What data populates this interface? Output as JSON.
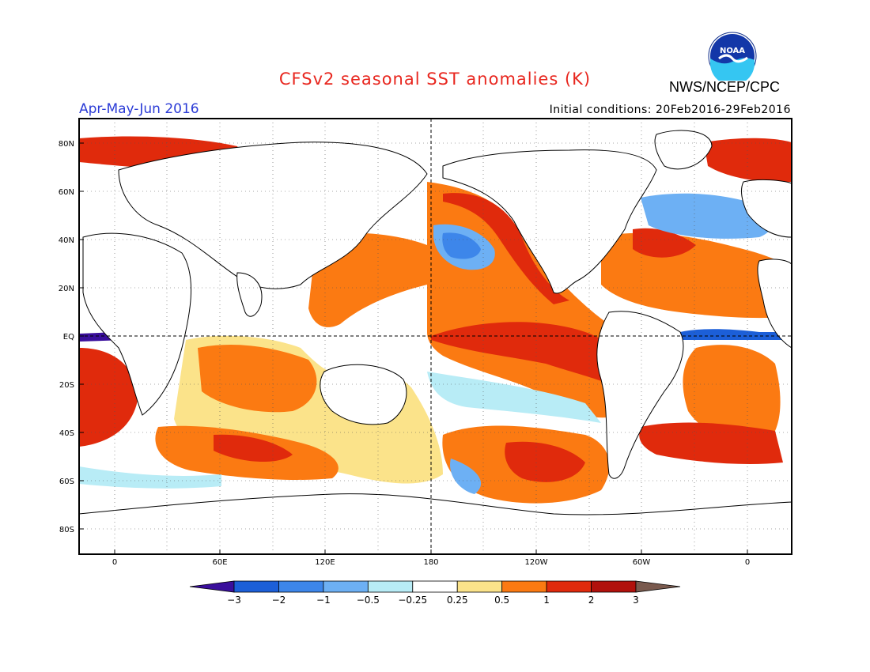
{
  "header": {
    "title": "CFSv2 seasonal SST anomalies (K)",
    "agency": "NWS/NCEP/CPC",
    "season": "Apr-May-Jun 2016",
    "initial_conditions": "Initial conditions: 20Feb2016-29Feb2016",
    "logo_text": "NOAA"
  },
  "map": {
    "lat_ticks": [
      "80N",
      "60N",
      "40N",
      "20N",
      "EQ",
      "20S",
      "40S",
      "60S",
      "80S"
    ],
    "lon_ticks": [
      "0",
      "60E",
      "120E",
      "180",
      "120W",
      "60W",
      "0"
    ]
  },
  "colorbar": {
    "labels": [
      "−3",
      "−2",
      "−1",
      "−0.5",
      "−0.25",
      "0.25",
      "0.5",
      "1",
      "2",
      "3"
    ],
    "colors": [
      "#3a0f9c",
      "#1c5fd8",
      "#3d86ea",
      "#6db0f4",
      "#b8ecf6",
      "#ffffff",
      "#fbe38a",
      "#fb7a12",
      "#e02a0c",
      "#b1110c",
      "#7a5a4e"
    ]
  }
}
